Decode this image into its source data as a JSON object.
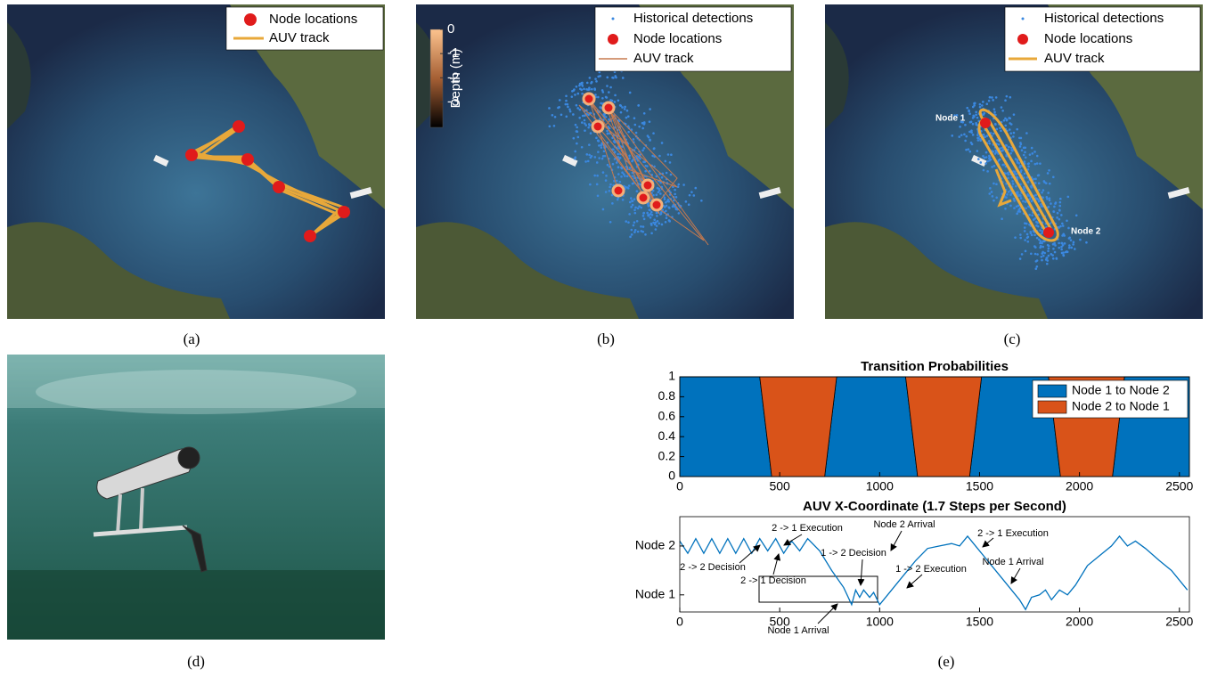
{
  "panels": {
    "a": {
      "label": "(a)",
      "legend": [
        "Node locations",
        "AUV track"
      ]
    },
    "b": {
      "label": "(b)",
      "legend": [
        "Historical detections",
        "Node locations",
        "AUV track"
      ],
      "colorbar": {
        "label": "Depth (m)",
        "ticks": [
          0,
          -1,
          -2,
          -3
        ],
        "lim": [
          -4.05,
          0
        ]
      }
    },
    "c": {
      "label": "(c)",
      "legend": [
        "Historical detections",
        "Node locations",
        "AUV track"
      ],
      "annotations": [
        "Node 1",
        "Node 2"
      ]
    },
    "d": {
      "label": "(d)"
    },
    "e": {
      "label": "(e)"
    }
  },
  "chart_data": [
    {
      "type": "area",
      "stacked": true,
      "title": "Transition Probabilities",
      "x": [
        0,
        400,
        430,
        460,
        725,
        755,
        785,
        1130,
        1160,
        1190,
        1450,
        1480,
        1510,
        1845,
        1875,
        1905,
        2165,
        2195,
        2225,
        2550
      ],
      "series": [
        {
          "name": "Node 1 to Node 2",
          "color": "#0072bd",
          "values": [
            1,
            1,
            0.5,
            0,
            0,
            0.5,
            1,
            1,
            0.5,
            0,
            0,
            0.5,
            1,
            1,
            0.5,
            0,
            0,
            0.5,
            1,
            1
          ]
        },
        {
          "name": "Node 2 to Node 1",
          "color": "#d95319",
          "values": [
            0,
            0,
            0.5,
            1,
            1,
            0.5,
            0,
            0,
            0.5,
            1,
            1,
            0.5,
            0,
            0,
            0.5,
            1,
            1,
            0.5,
            0,
            0
          ]
        }
      ],
      "xlim": [
        0,
        2550
      ],
      "ylim": [
        0,
        1
      ],
      "xticks": [
        0,
        500,
        1000,
        1500,
        2000,
        2500
      ],
      "yticks": [
        0,
        0.2,
        0.4,
        0.6,
        0.8,
        1
      ],
      "legend": "upper right"
    },
    {
      "type": "line",
      "title": "AUV X-Coordinate (1.7 Steps per Second)",
      "color": "#0072bd",
      "x": [
        0,
        40,
        80,
        120,
        160,
        200,
        240,
        280,
        320,
        360,
        400,
        440,
        480,
        520,
        560,
        600,
        640,
        700,
        760,
        820,
        860,
        880,
        900,
        920,
        950,
        970,
        1000,
        1060,
        1120,
        1180,
        1240,
        1300,
        1360,
        1400,
        1440,
        1480,
        1540,
        1600,
        1660,
        1700,
        1730,
        1760,
        1800,
        1830,
        1860,
        1900,
        1940,
        1980,
        2040,
        2100,
        2160,
        2200,
        2240,
        2280,
        2330,
        2400,
        2460,
        2540
      ],
      "values": [
        2.1,
        1.85,
        2.15,
        1.85,
        2.15,
        1.85,
        2.15,
        1.85,
        2.15,
        1.85,
        2.15,
        1.9,
        2.15,
        1.85,
        2.1,
        1.9,
        2.15,
        1.9,
        1.5,
        1.15,
        0.8,
        1.1,
        0.95,
        1.1,
        0.95,
        1.05,
        0.8,
        1.1,
        1.4,
        1.7,
        1.95,
        2.0,
        2.05,
        2.0,
        2.2,
        2.0,
        1.7,
        1.4,
        1.1,
        0.9,
        0.7,
        0.95,
        1.0,
        1.1,
        0.9,
        1.1,
        1.0,
        1.2,
        1.6,
        1.8,
        2.0,
        2.2,
        2.0,
        2.1,
        1.95,
        1.7,
        1.5,
        1.1
      ],
      "xlim": [
        0,
        2550
      ],
      "ylim": [
        0.65,
        2.6
      ],
      "xticks": [
        0,
        500,
        1000,
        1500,
        2000,
        2500
      ],
      "yticks": [
        {
          "value": 1,
          "label": "Node 1"
        },
        {
          "value": 2,
          "label": "Node 2"
        }
      ],
      "annotations": [
        "2 -> 1 Execution",
        "1 -> 2 Decision",
        "Node 2 Arrival",
        "2 -> 1 Execution",
        "2 -> 2 Decision",
        "1 -> 2 Execution",
        "Node 1 Arrival",
        "2 -> 1 Decision",
        "Node 1 Arrival"
      ]
    }
  ]
}
